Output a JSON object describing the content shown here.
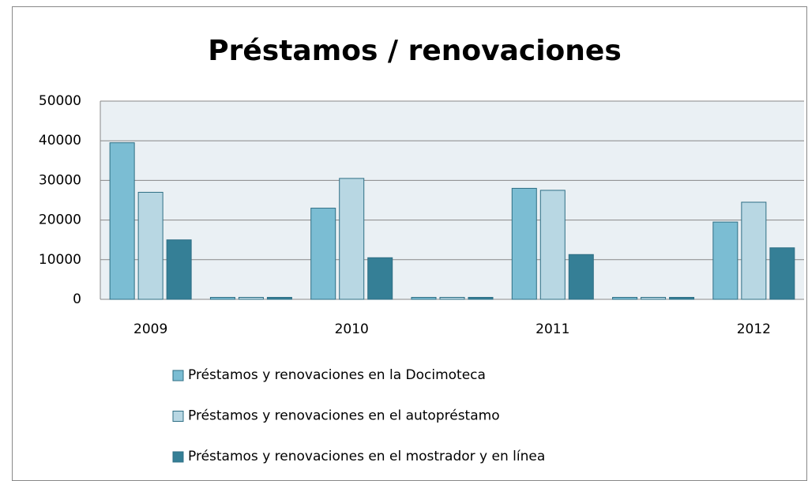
{
  "chart_data": {
    "type": "bar",
    "title": "Préstamos / renovaciones",
    "categories": [
      "2009",
      null,
      "2010",
      null,
      "2011",
      null,
      "2012"
    ],
    "series": [
      {
        "name": "Préstamos y renovaciones en la Docimoteca",
        "color": "#7bbdd3",
        "values": [
          39500,
          500,
          23000,
          500,
          28000,
          500,
          19500
        ]
      },
      {
        "name": "Préstamos y renovaciones en el autopréstamo",
        "color": "#b8d7e3",
        "values": [
          27000,
          500,
          30500,
          500,
          27500,
          500,
          24500
        ]
      },
      {
        "name": "Préstamos y renovaciones en el mostrador y en línea",
        "color": "#357f96",
        "values": [
          15000,
          500,
          10500,
          500,
          11300,
          500,
          13000
        ]
      }
    ],
    "ylim": [
      0,
      50000
    ],
    "yticks": [
      0,
      10000,
      20000,
      30000,
      40000,
      50000
    ],
    "grid": true,
    "legend": "bottom"
  }
}
